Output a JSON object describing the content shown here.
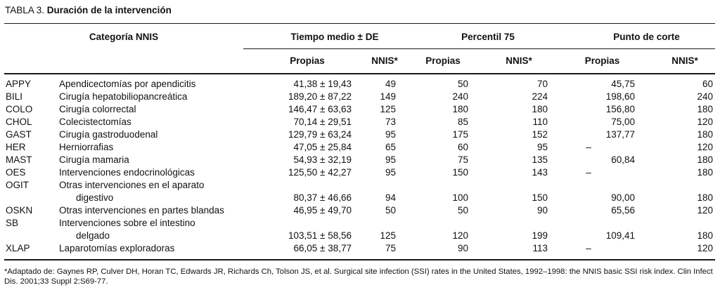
{
  "title": {
    "label": "TABLA 3.",
    "subtitle": "Duración de la intervención"
  },
  "table": {
    "category_header": "Categoría NNIS",
    "groups": [
      {
        "label": "Tiempo medio ± DE"
      },
      {
        "label": "Percentil 75"
      },
      {
        "label": "Punto de corte"
      }
    ],
    "subheaders": [
      "Propias",
      "NNIS*",
      "Propias",
      "NNIS*",
      "Propias",
      "NNIS*"
    ],
    "rows": [
      {
        "code": "APPY",
        "desc": [
          "Apendicectomías por apendicitis"
        ],
        "values": [
          "41,38 ± 19,43",
          "49",
          "50",
          "70",
          "45,75",
          "60"
        ]
      },
      {
        "code": "BILI",
        "desc": [
          "Cirugía hepatobiliopancreática"
        ],
        "values": [
          "189,20 ± 87,22",
          "149",
          "240",
          "224",
          "198,60",
          "240"
        ]
      },
      {
        "code": "COLO",
        "desc": [
          "Cirugía colorrectal"
        ],
        "values": [
          "146,47 ± 63,63",
          "125",
          "180",
          "180",
          "156,80",
          "180"
        ]
      },
      {
        "code": "CHOL",
        "desc": [
          "Colecistectomías"
        ],
        "values": [
          "70,14 ± 29,51",
          "73",
          "85",
          "110",
          "75,00",
          "120"
        ]
      },
      {
        "code": "GAST",
        "desc": [
          "Cirugía gastroduodenal"
        ],
        "values": [
          "129,79 ± 63,24",
          "95",
          "175",
          "152",
          "137,77",
          "180"
        ]
      },
      {
        "code": "HER",
        "desc": [
          "Herniorrafias"
        ],
        "values": [
          "47,05 ± 25,84",
          "65",
          "60",
          "95",
          "–",
          "120"
        ]
      },
      {
        "code": "MAST",
        "desc": [
          "Cirugía mamaria"
        ],
        "values": [
          "54,93 ± 32,19",
          "95",
          "75",
          "135",
          "60,84",
          "180"
        ]
      },
      {
        "code": "OES",
        "desc": [
          "Intervenciones endocrinológicas"
        ],
        "values": [
          "125,50 ± 42,27",
          "95",
          "150",
          "143",
          "–",
          "180"
        ]
      },
      {
        "code": "OGIT",
        "desc": [
          "Otras intervenciones en el aparato",
          "digestivo"
        ],
        "values": [
          "80,37 ± 46,66",
          "94",
          "100",
          "150",
          "90,00",
          "180"
        ]
      },
      {
        "code": "OSKN",
        "desc": [
          "Otras intervenciones en partes blandas"
        ],
        "values": [
          "46,95 ± 49,70",
          "50",
          "50",
          "90",
          "65,56",
          "120"
        ]
      },
      {
        "code": "SB",
        "desc": [
          "Intervenciones sobre el intestino",
          "delgado"
        ],
        "values": [
          "103,51 ± 58,56",
          "125",
          "120",
          "199",
          "109,41",
          "180"
        ]
      },
      {
        "code": "XLAP",
        "desc": [
          "Laparotomías exploradoras"
        ],
        "values": [
          "66,05 ± 38,77",
          "75",
          "90",
          "113",
          "–",
          "120"
        ]
      }
    ]
  },
  "footnote": "*Adaptado de: Gaynes RP, Culver DH, Horan TC, Edwards JR, Richards Ch, Tolson JS, et al. Surgical site infection (SSI) rates in the United States, 1992–1998: the NNIS basic SSI risk index. Clin Infect Dis. 2001;33 Suppl 2:S69-77.",
  "colors": {
    "text": "#111111",
    "rule": "#1a1a1a",
    "background": "#ffffff"
  }
}
